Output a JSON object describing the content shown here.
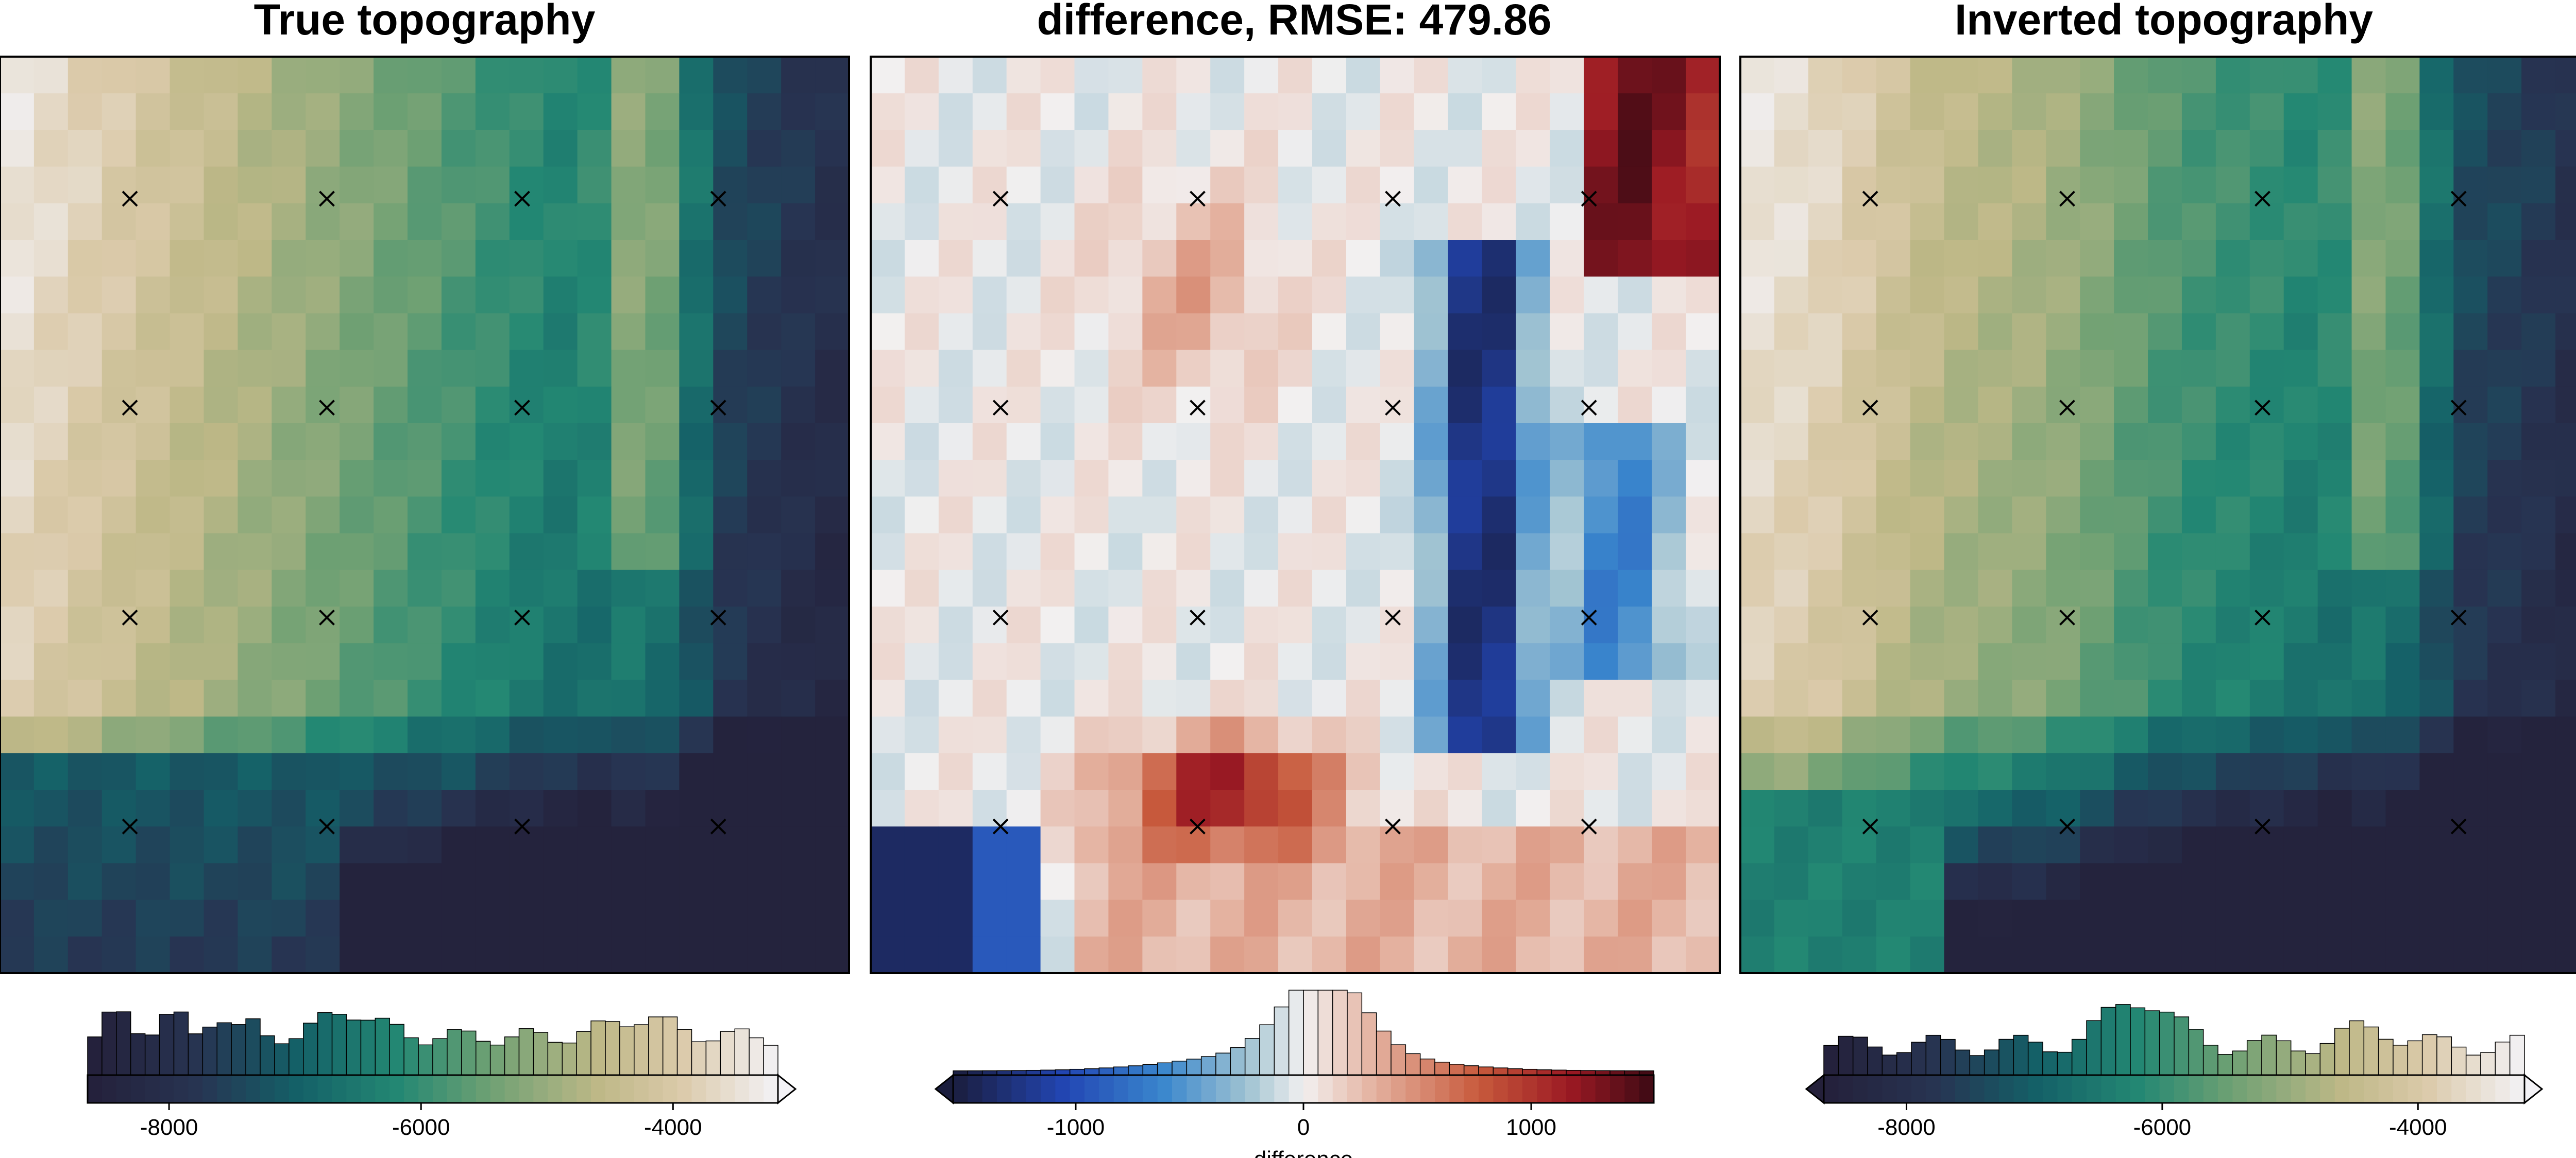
{
  "panels": [
    {
      "title": "True topography"
    },
    {
      "title": "difference, RMSE: 479.86"
    },
    {
      "title": "Inverted topography"
    }
  ],
  "colorbars": [
    {
      "ticks": [
        "-8000",
        "-6000",
        "-4000"
      ],
      "label": ""
    },
    {
      "ticks": [
        "-1000",
        "0",
        "1000"
      ],
      "label": "difference"
    },
    {
      "ticks": [
        "-8000",
        "-6000",
        "-4000"
      ],
      "label": ""
    }
  ],
  "chart_data": [
    {
      "type": "heatmap",
      "title": "True topography",
      "colormap": "topography (dark navy → teal → sage → tan → white)",
      "vrange": [
        -9200,
        -3000
      ],
      "grid": "25 columns × 25 rows",
      "markers": {
        "symbol": "×",
        "columns": 4,
        "rows": 4
      },
      "colorbar_ticks": [
        -8000,
        -6000,
        -4000
      ],
      "colorbar_extend": "max",
      "histogram": true
    },
    {
      "type": "heatmap",
      "title": "difference, RMSE: 479.86",
      "colormap": "diverging blue–white–red",
      "vrange": [
        -1450,
        1450
      ],
      "grid": "25 columns × 25 rows",
      "markers": {
        "symbol": "×",
        "columns": 4,
        "rows": 4
      },
      "colorbar_ticks": [
        -1000,
        0,
        1000
      ],
      "colorbar_label": "difference",
      "colorbar_extend": "min",
      "histogram": true
    },
    {
      "type": "heatmap",
      "title": "Inverted topography",
      "colormap": "topography (dark navy → teal → sage → tan → white)",
      "vrange": [
        -9200,
        -3000
      ],
      "grid": "25 columns × 25 rows",
      "markers": {
        "symbol": "×",
        "columns": 4,
        "rows": 4
      },
      "colorbar_ticks": [
        -8000,
        -6000,
        -4000
      ],
      "colorbar_extend": "both",
      "histogram": true
    }
  ]
}
